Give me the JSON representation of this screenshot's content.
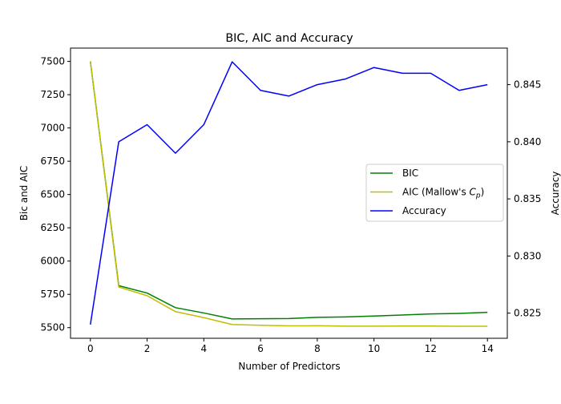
{
  "chart_data": {
    "type": "line",
    "title": "BIC, AIC and Accuracy",
    "xlabel": "Number of Predictors",
    "ylabel_left": "Bic and AIC",
    "ylabel_right": "Accuracy",
    "x": [
      0,
      1,
      2,
      3,
      4,
      5,
      6,
      7,
      8,
      9,
      10,
      11,
      12,
      13,
      14
    ],
    "xlim": [
      -0.7,
      14.7
    ],
    "ylim_left": [
      5420,
      7600
    ],
    "ylim_right": [
      0.8228,
      0.8482
    ],
    "xticks": [
      0,
      2,
      4,
      6,
      8,
      10,
      12,
      14
    ],
    "yticks_left": [
      5500,
      5750,
      6000,
      6250,
      6500,
      6750,
      7000,
      7250,
      7500
    ],
    "yticks_right": [
      0.825,
      0.83,
      0.835,
      0.84,
      0.845
    ],
    "yticks_right_labels": [
      "0.825",
      "0.830",
      "0.835",
      "0.840",
      "0.845"
    ],
    "grid": false,
    "legend_position": "center-right",
    "series": [
      {
        "name": "BIC",
        "axis": "left",
        "color": "#008000",
        "values": [
          7500,
          5815,
          5760,
          5650,
          5610,
          5565,
          5567,
          5568,
          5577,
          5580,
          5587,
          5595,
          5603,
          5607,
          5615
        ]
      },
      {
        "name": "AIC (Mallow's C_p)",
        "legend_text": "AIC (Mallow's ",
        "legend_math_main": "C",
        "legend_math_sub": "p",
        "legend_close": ")",
        "axis": "left",
        "color": "#bfbf00",
        "values": [
          7500,
          5805,
          5740,
          5620,
          5575,
          5523,
          5518,
          5513,
          5514,
          5511,
          5511,
          5512,
          5512,
          5510,
          5510
        ]
      },
      {
        "name": "Accuracy",
        "axis": "right",
        "color": "#0000ff",
        "values": [
          0.824,
          0.84,
          0.8415,
          0.839,
          0.8415,
          0.847,
          0.8445,
          0.844,
          0.845,
          0.8455,
          0.8465,
          0.846,
          0.846,
          0.8445,
          0.845
        ]
      }
    ]
  }
}
